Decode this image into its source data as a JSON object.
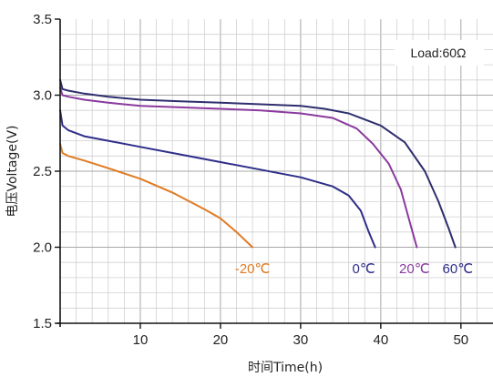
{
  "chart_data": {
    "type": "line",
    "title": "",
    "xlabel": "时间Time(h)",
    "ylabel": "电压Voltage(V)",
    "xlim": [
      0,
      54
    ],
    "ylim": [
      1.5,
      3.5
    ],
    "x_ticks": [
      "10",
      "20",
      "30",
      "40",
      "50"
    ],
    "x_tick_values": [
      10,
      20,
      30,
      40,
      50
    ],
    "y_ticks": [
      "1.5",
      "2.0",
      "2.5",
      "3.0",
      "3.5"
    ],
    "y_tick_values": [
      1.5,
      2.0,
      2.5,
      3.0,
      3.5
    ],
    "grid": true,
    "annotation": "Load:60Ω",
    "series": [
      {
        "name": "-20℃",
        "color": "#e07b22",
        "x": [
          0,
          0.3,
          1,
          3,
          6,
          10,
          14,
          18,
          20,
          22,
          24
        ],
        "y": [
          2.68,
          2.62,
          2.6,
          2.57,
          2.52,
          2.45,
          2.36,
          2.25,
          2.19,
          2.1,
          2.0
        ]
      },
      {
        "name": "0℃",
        "color": "#2e2e8a",
        "x": [
          0,
          0.3,
          1,
          3,
          6,
          10,
          15,
          20,
          25,
          30,
          34,
          36,
          37.5,
          38.5,
          39.3
        ],
        "y": [
          2.9,
          2.8,
          2.77,
          2.73,
          2.7,
          2.66,
          2.61,
          2.56,
          2.51,
          2.46,
          2.4,
          2.34,
          2.24,
          2.1,
          2.0
        ]
      },
      {
        "name": "20℃",
        "color": "#8a3a9e",
        "x": [
          0,
          0.3,
          1,
          3,
          6,
          10,
          15,
          20,
          25,
          30,
          34,
          37,
          39,
          41,
          42.5,
          43.7,
          44.5
        ],
        "y": [
          3.05,
          3.0,
          2.99,
          2.97,
          2.95,
          2.93,
          2.92,
          2.91,
          2.9,
          2.88,
          2.85,
          2.78,
          2.68,
          2.55,
          2.38,
          2.15,
          2.0
        ]
      },
      {
        "name": "60℃",
        "color": "#2e2e6e",
        "x": [
          0,
          0.3,
          1,
          3,
          6,
          10,
          15,
          20,
          25,
          30,
          33,
          36,
          40,
          43,
          45.5,
          47.2,
          48.5,
          49.3
        ],
        "y": [
          3.1,
          3.04,
          3.03,
          3.01,
          2.99,
          2.97,
          2.96,
          2.95,
          2.94,
          2.93,
          2.91,
          2.88,
          2.8,
          2.69,
          2.5,
          2.3,
          2.12,
          2.0
        ]
      }
    ],
    "series_labels": [
      {
        "text": "-20℃",
        "color": "#e07b22"
      },
      {
        "text": "0℃",
        "color": "#2e2e8a"
      },
      {
        "text": "20℃",
        "color": "#8a3a9e"
      },
      {
        "text": "60℃",
        "color": "#2e2e8a"
      }
    ]
  }
}
